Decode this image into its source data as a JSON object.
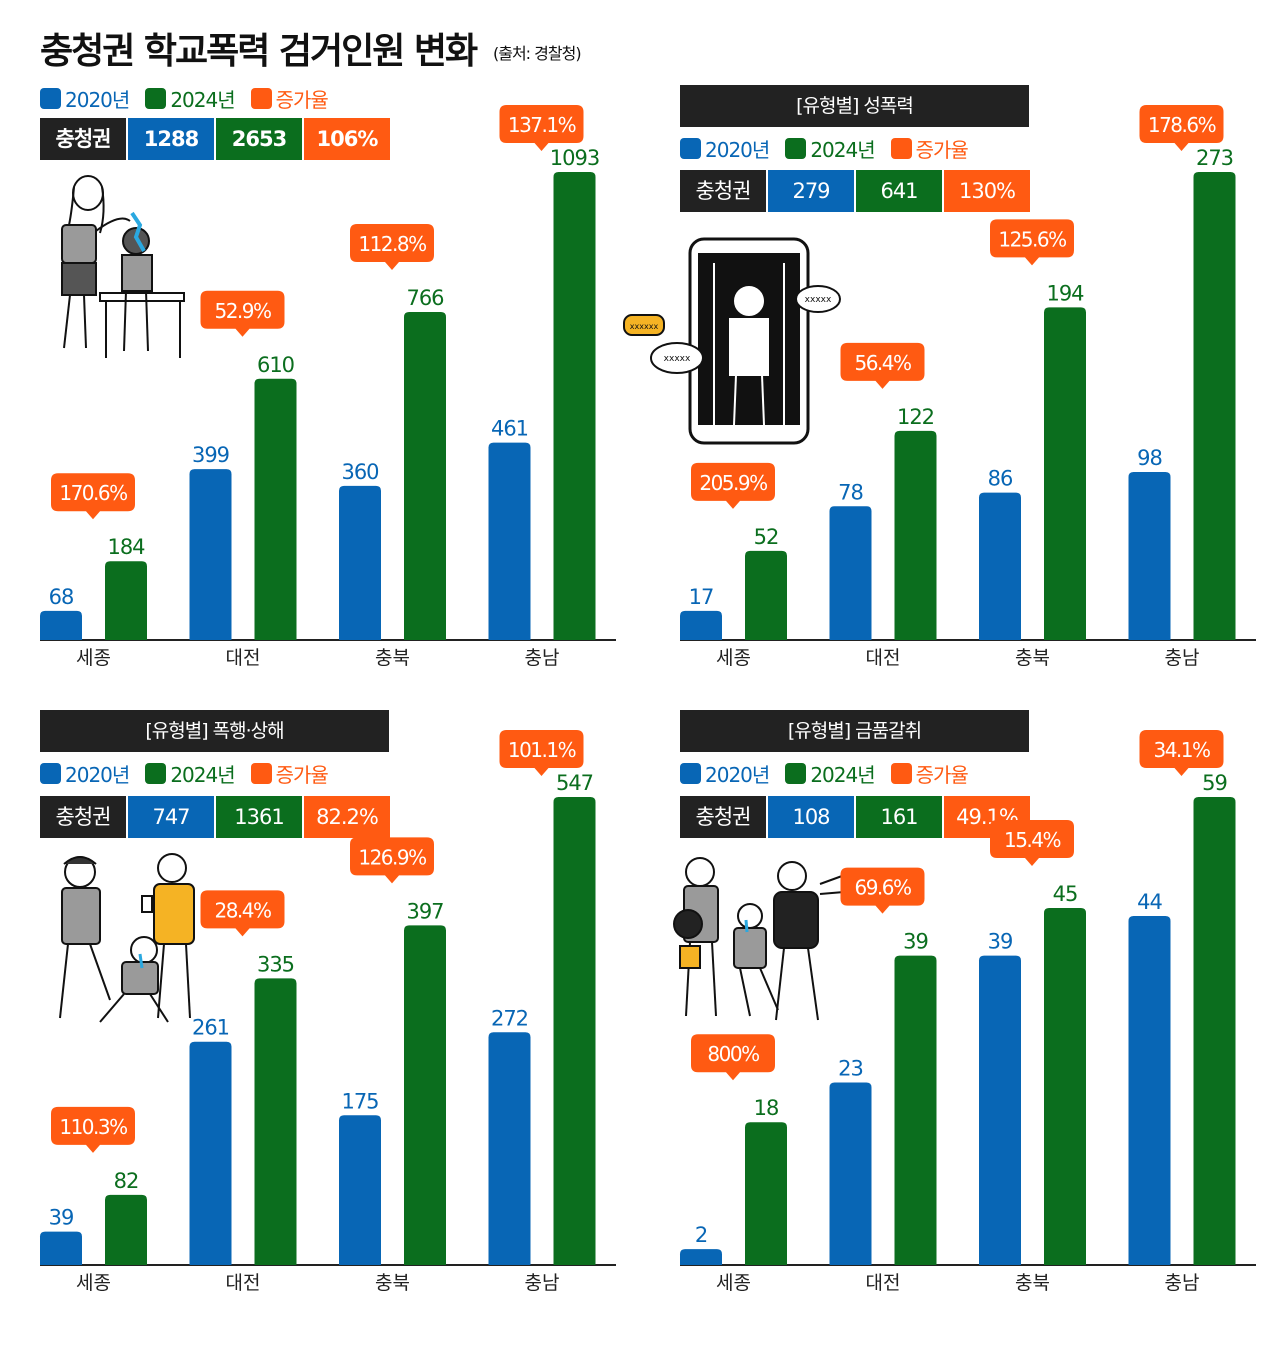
{
  "header": {
    "title": "충청권 학교폭력 검거인원 변화",
    "source": "(출처: 경찰청)"
  },
  "colors": {
    "y2020": "#0866B5",
    "y2024": "#0B6E1E",
    "rate": "#FF5A12",
    "dark": "#222222"
  },
  "legend": {
    "y2020": "2020년",
    "y2024": "2024년",
    "rate": "증가율"
  },
  "chart_data": [
    {
      "type": "bar",
      "title": "",
      "categories": [
        "세종",
        "대전",
        "충북",
        "충남"
      ],
      "series": [
        {
          "name": "2020년",
          "values": [
            68,
            399,
            360,
            461
          ]
        },
        {
          "name": "2024년",
          "values": [
            184,
            610,
            766,
            1093
          ]
        }
      ],
      "rates": [
        "170.6%",
        "52.9%",
        "112.8%",
        "137.1%"
      ],
      "summary": {
        "label": "충청권",
        "v2020": "1288",
        "v2024": "2653",
        "rate": "106%"
      },
      "ylim": [
        0,
        1093
      ],
      "grid": false,
      "legend_position": "top-left"
    },
    {
      "type": "bar",
      "title": "[유형별] 성폭력",
      "categories": [
        "세종",
        "대전",
        "충북",
        "충남"
      ],
      "series": [
        {
          "name": "2020년",
          "values": [
            17,
            78,
            86,
            98
          ]
        },
        {
          "name": "2024년",
          "values": [
            52,
            122,
            194,
            273
          ]
        }
      ],
      "rates": [
        "205.9%",
        "56.4%",
        "125.6%",
        "178.6%"
      ],
      "summary": {
        "label": "충청권",
        "v2020": "279",
        "v2024": "641",
        "rate": "130%"
      },
      "ylim": [
        0,
        273
      ],
      "grid": false,
      "legend_position": "top-left"
    },
    {
      "type": "bar",
      "title": "[유형별] 폭행·상해",
      "categories": [
        "세종",
        "대전",
        "충북",
        "충남"
      ],
      "series": [
        {
          "name": "2020년",
          "values": [
            39,
            261,
            175,
            272
          ]
        },
        {
          "name": "2024년",
          "values": [
            82,
            335,
            397,
            547
          ]
        }
      ],
      "rates": [
        "110.3%",
        "28.4%",
        "126.9%",
        "101.1%"
      ],
      "summary": {
        "label": "충청권",
        "v2020": "747",
        "v2024": "1361",
        "rate": "82.2%"
      },
      "ylim": [
        0,
        547
      ],
      "grid": false,
      "legend_position": "top-left"
    },
    {
      "type": "bar",
      "title": "[유형별] 금품갈취",
      "categories": [
        "세종",
        "대전",
        "충북",
        "충남"
      ],
      "series": [
        {
          "name": "2020년",
          "values": [
            2,
            23,
            39,
            44
          ]
        },
        {
          "name": "2024년",
          "values": [
            18,
            39,
            45,
            59
          ]
        }
      ],
      "rates": [
        "800%",
        "69.6%",
        "15.4%",
        "34.1%"
      ],
      "summary": {
        "label": "충청권",
        "v2020": "108",
        "v2024": "161",
        "rate": "49.1%"
      },
      "ylim": [
        0,
        59
      ],
      "grid": false,
      "legend_position": "top-left"
    }
  ],
  "illustrations": {
    "phone_bubbles": [
      "xxxxxx",
      "xxxxx",
      "xxxxx"
    ]
  }
}
